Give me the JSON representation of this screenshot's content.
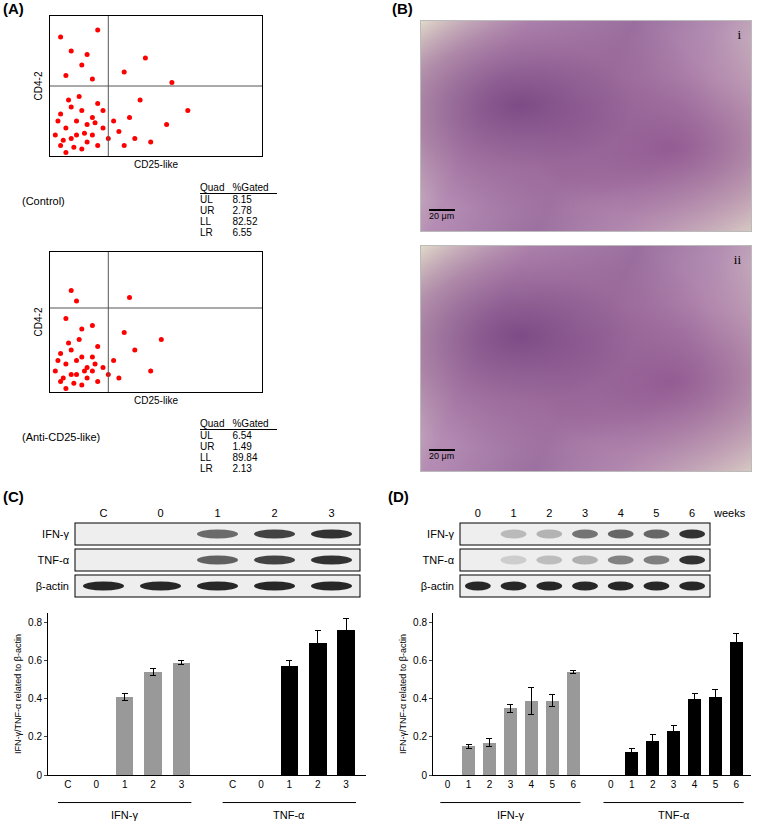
{
  "panel_labels": [
    "(A)",
    "(B)",
    "(C)",
    "(D)"
  ],
  "chart_data": [
    {
      "type": "scatter",
      "caption": "(Control)",
      "x_label": "CD25-like",
      "y_label": "CD4-2",
      "color": "#ff0000",
      "xlim": [
        0,
        4
      ],
      "ylim": [
        0,
        4
      ],
      "tick_labels": false,
      "gate": {
        "x": 1.1,
        "y": 2.0
      },
      "x": [
        0.2,
        0.4,
        0.6,
        0.8,
        0.3,
        0.5,
        0.7,
        0.9,
        1.0,
        0.2,
        0.4,
        0.6,
        0.8,
        1.1,
        1.2,
        0.1,
        0.3,
        0.5,
        0.7,
        1.0,
        1.3,
        1.4,
        0.9,
        0.35,
        0.15,
        1.5,
        1.6,
        0.55,
        0.25,
        0.65,
        0.45,
        0.85,
        0.3,
        0.6,
        0.4,
        0.8,
        0.2,
        0.7,
        0.9,
        1.4,
        1.8,
        2.3,
        1.9,
        2.2,
        2.6,
        1.7
      ],
      "y": [
        0.3,
        0.5,
        0.2,
        0.6,
        0.8,
        1.0,
        0.9,
        0.3,
        0.8,
        1.2,
        1.4,
        1.3,
        1.1,
        0.5,
        1.0,
        0.6,
        0.1,
        0.6,
        0.4,
        1.3,
        0.7,
        0.3,
        1.5,
        1.6,
        1.0,
        1.1,
        0.5,
        1.7,
        0.45,
        0.65,
        0.25,
        0.95,
        2.3,
        2.6,
        3.0,
        2.2,
        3.4,
        2.9,
        3.6,
        2.4,
        2.8,
        2.1,
        0.4,
        0.9,
        1.3,
        1.6
      ],
      "stats": {
        "header": [
          "Quad",
          "%Gated"
        ],
        "rows": [
          [
            "UL",
            8.15
          ],
          [
            "UR",
            2.78
          ],
          [
            "LL",
            82.52
          ],
          [
            "LR",
            6.55
          ]
        ]
      }
    },
    {
      "type": "scatter",
      "caption": "(Anti-CD25-like)",
      "x_label": "CD25-like",
      "y_label": "CD4-2",
      "color": "#ff0000",
      "xlim": [
        0,
        4
      ],
      "ylim": [
        0,
        4
      ],
      "tick_labels": false,
      "gate": {
        "x": 1.1,
        "y": 2.4
      },
      "x": [
        0.2,
        0.4,
        0.6,
        0.8,
        0.3,
        0.5,
        0.7,
        0.9,
        1.0,
        0.2,
        0.4,
        0.6,
        0.8,
        1.1,
        0.1,
        0.3,
        0.5,
        0.7,
        1.2,
        0.9,
        0.35,
        0.15,
        0.55,
        0.25,
        0.65,
        0.45,
        0.85,
        1.3,
        0.3,
        0.6,
        0.5,
        0.8,
        0.4,
        1.5,
        1.9,
        1.6,
        2.1,
        1.4
      ],
      "y": [
        0.3,
        0.5,
        0.2,
        0.6,
        0.8,
        0.9,
        0.7,
        0.3,
        0.7,
        1.1,
        1.2,
        1.0,
        1.0,
        0.5,
        0.6,
        0.1,
        0.5,
        0.4,
        0.9,
        1.3,
        1.4,
        0.9,
        1.5,
        0.4,
        0.6,
        0.25,
        0.8,
        0.4,
        2.1,
        1.8,
        2.6,
        1.9,
        2.9,
        2.7,
        0.6,
        1.2,
        1.5,
        1.7
      ],
      "stats": {
        "header": [
          "Quad",
          "%Gated"
        ],
        "rows": [
          [
            "UL",
            6.54
          ],
          [
            "UR",
            1.49
          ],
          [
            "LL",
            89.84
          ],
          [
            "LR",
            2.13
          ]
        ]
      }
    },
    {
      "type": "bar",
      "categories": [
        "C",
        "0",
        "1",
        "2",
        "3"
      ],
      "y_label": "IFN-γ/TNF-α related to β-actin",
      "ylim": [
        0,
        0.85
      ],
      "yticks": [
        0,
        0.2,
        0.4,
        0.6,
        0.8
      ],
      "series": [
        {
          "name": "IFN-γ",
          "color": "#999999",
          "values": [
            0,
            0,
            0.41,
            0.54,
            0.59
          ],
          "errors": [
            0,
            0,
            0.02,
            0.02,
            0.01
          ]
        },
        {
          "name": "TNF-α",
          "color": "#000000",
          "values": [
            0,
            0,
            0.57,
            0.69,
            0.76
          ],
          "errors": [
            0,
            0,
            0.03,
            0.07,
            0.06
          ]
        }
      ]
    },
    {
      "type": "bar",
      "categories": [
        "0",
        "1",
        "2",
        "3",
        "4",
        "5",
        "6"
      ],
      "y_label": "IFN-γ/TNF-α related to β-actin",
      "ylim": [
        0,
        0.85
      ],
      "yticks": [
        0,
        0.2,
        0.4,
        0.6,
        0.8
      ],
      "series": [
        {
          "name": "IFN-γ",
          "color": "#999999",
          "values": [
            0,
            0.15,
            0.17,
            0.35,
            0.39,
            0.39,
            0.54
          ],
          "errors": [
            0,
            0.01,
            0.02,
            0.02,
            0.07,
            0.03,
            0.01
          ]
        },
        {
          "name": "TNF-α",
          "color": "#000000",
          "values": [
            0,
            0.12,
            0.18,
            0.23,
            0.4,
            0.41,
            0.7
          ],
          "errors": [
            0,
            0.02,
            0.03,
            0.03,
            0.03,
            0.04,
            0.04
          ]
        }
      ]
    }
  ],
  "histology": {
    "images": [
      {
        "label": "i",
        "scale_bar": "20 μm"
      },
      {
        "label": "ii",
        "scale_bar": "20 μm"
      }
    ]
  },
  "blots": [
    {
      "lanes": [
        "C",
        "0",
        "1",
        "2",
        "3"
      ],
      "rows": [
        "IFN-γ",
        "TNF-α",
        "β-actin"
      ]
    },
    {
      "lanes": [
        "0",
        "1",
        "2",
        "3",
        "4",
        "5",
        "6"
      ],
      "lane_unit": "weeks",
      "rows": [
        "IFN-γ",
        "TNF-α",
        "β-actin"
      ]
    }
  ]
}
